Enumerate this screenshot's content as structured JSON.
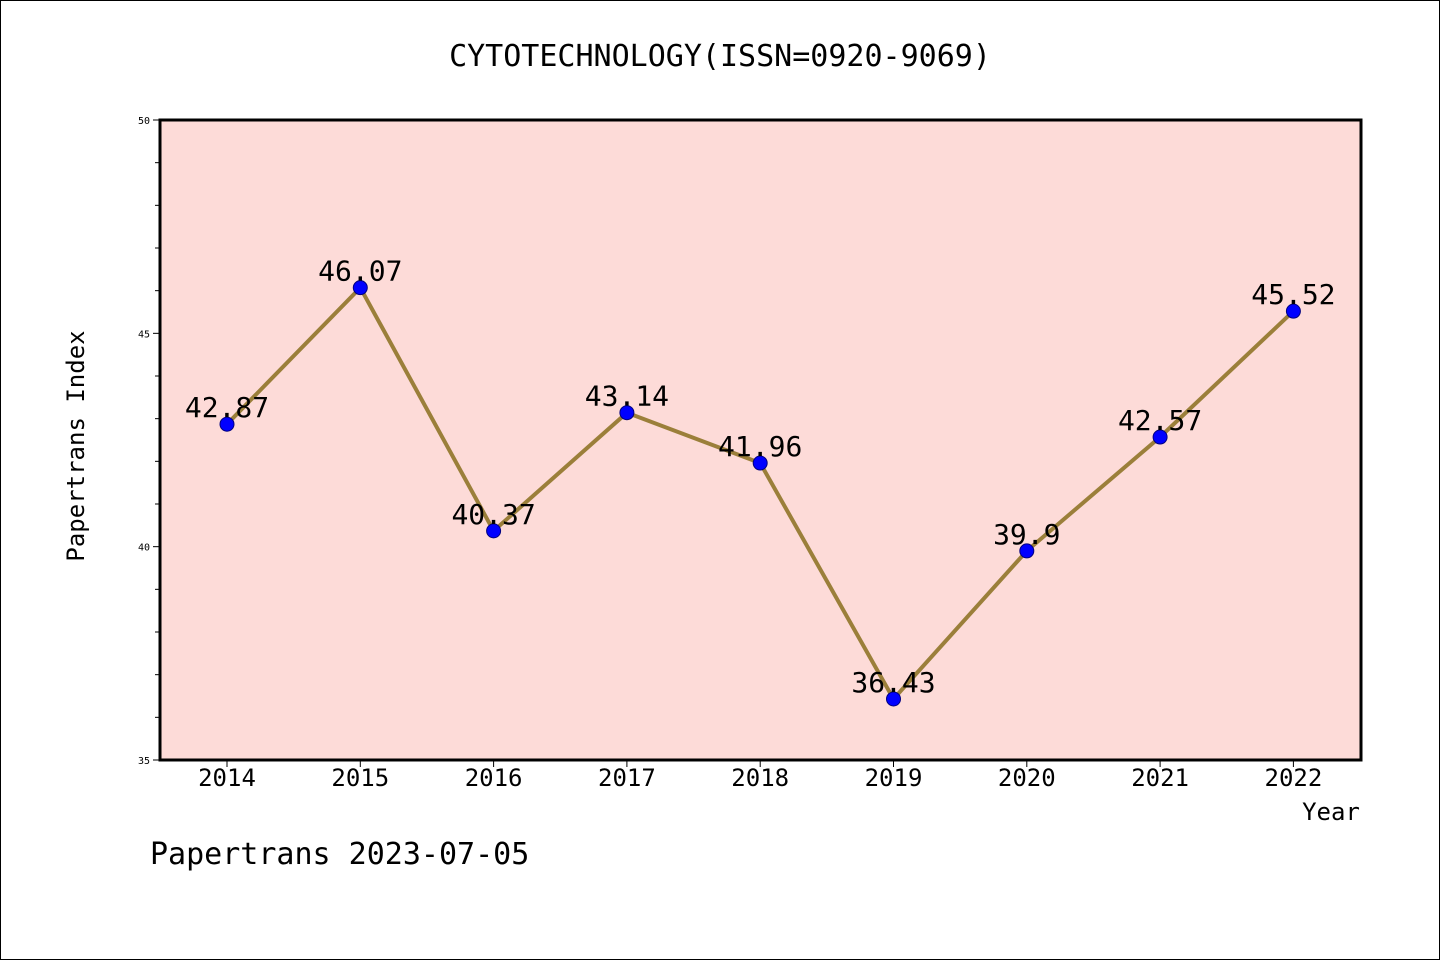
{
  "chart_data": {
    "type": "line",
    "title": "CYTOTECHNOLOGY(ISSN=0920-9069)",
    "xlabel": "Year",
    "ylabel": "Papertrans Index",
    "categories": [
      "2014",
      "2015",
      "2016",
      "2017",
      "2018",
      "2019",
      "2020",
      "2021",
      "2022"
    ],
    "values": [
      42.87,
      46.07,
      40.37,
      43.14,
      41.96,
      36.43,
      39.9,
      42.57,
      45.52
    ],
    "data_labels": [
      "42.87",
      "46.07",
      "40.37",
      "43.14",
      "41.96",
      "36.43",
      "39.9",
      "42.57",
      "45.52"
    ],
    "ylim": [
      35,
      50
    ],
    "y_major_ticks": [
      35,
      40,
      45,
      50
    ],
    "y_minor_step": 1,
    "grid": false,
    "colors": {
      "plot_background": "#fddbd8",
      "line": "#9b7f3a",
      "marker": "#0000ff",
      "marker_edge": "#000080"
    }
  },
  "footer": "Papertrans 2023-07-05"
}
